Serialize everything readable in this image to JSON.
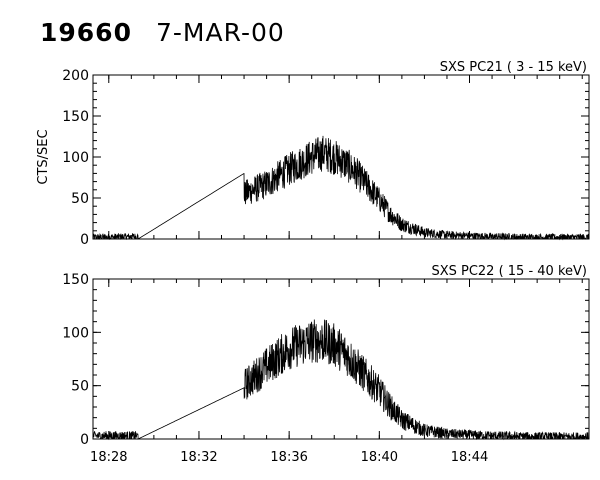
{
  "header": {
    "id": "19660",
    "date": "7-MAR-00"
  },
  "chart_data": [
    {
      "type": "line",
      "title": "SXS PC21  ( 3 - 15 keV)",
      "ylabel": "CTS/SEC",
      "xlabel": "",
      "x_unit": "minutes",
      "xlim": [
        1707.3,
        1729.3
      ],
      "ylim": [
        0,
        200
      ],
      "yticks": [
        0,
        50,
        100,
        150,
        200
      ],
      "xticks": [
        1708,
        1712,
        1716,
        1720,
        1724
      ],
      "xtick_labels": [
        "18:28",
        "18:32",
        "18:36",
        "18:40",
        "18:44"
      ],
      "grid": false,
      "series": [
        {
          "x": [
            1707.3,
            1709.3,
            1709.3,
            1714.0,
            1714.0,
            1715.0,
            1716.0,
            1717.0,
            1717.5,
            1718.0,
            1718.5,
            1719.0,
            1720.0,
            1720.5,
            1721.0,
            1722.0,
            1723.0,
            1725.0,
            1727.0,
            1729.3
          ],
          "y": [
            2,
            3,
            0,
            80,
            55,
            67,
            85,
            100,
            105,
            100,
            92,
            80,
            48,
            30,
            18,
            8,
            5,
            3,
            2,
            2
          ]
        }
      ]
    },
    {
      "type": "line",
      "title": "SXS PC22  ( 15 - 40 keV)",
      "ylabel": "",
      "xlabel": "",
      "x_unit": "minutes",
      "xlim": [
        1707.3,
        1729.3
      ],
      "ylim": [
        0,
        150
      ],
      "yticks": [
        0,
        50,
        100,
        150
      ],
      "xticks": [
        1708,
        1712,
        1716,
        1720,
        1724
      ],
      "xtick_labels": [
        "18:28",
        "18:32",
        "18:36",
        "18:40",
        "18:44"
      ],
      "grid": false,
      "series": [
        {
          "x": [
            1707.3,
            1709.3,
            1709.3,
            1714.0,
            1714.0,
            1715.0,
            1716.0,
            1717.0,
            1717.5,
            1718.0,
            1718.5,
            1719.0,
            1720.0,
            1720.5,
            1721.0,
            1722.0,
            1723.0,
            1725.0,
            1727.0,
            1729.3
          ],
          "y": [
            3,
            3,
            0,
            48,
            50,
            68,
            85,
            92,
            92,
            88,
            80,
            68,
            45,
            30,
            18,
            8,
            5,
            3,
            2,
            2
          ]
        }
      ]
    }
  ]
}
